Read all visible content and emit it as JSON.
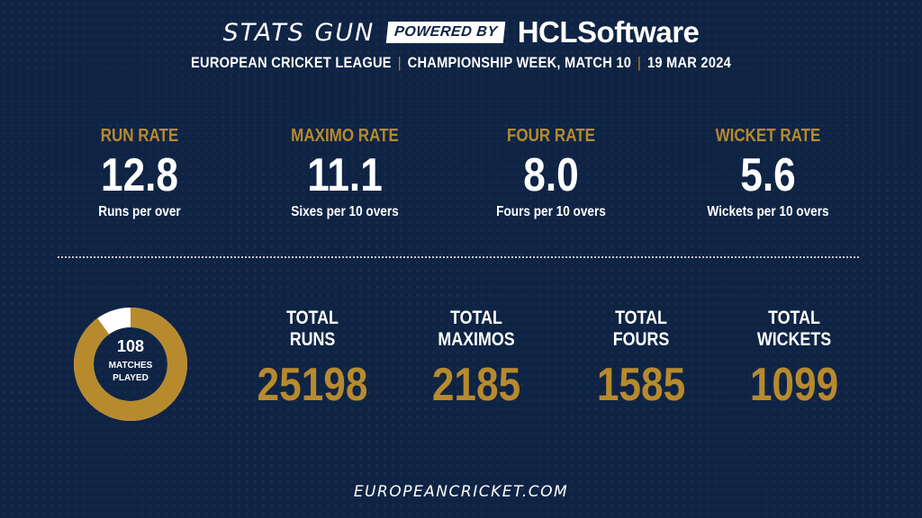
{
  "header": {
    "brand": "STATS GUN",
    "powered_by": "POWERED BY",
    "sponsor": "HCLSoftware",
    "league": "EUROPEAN CRICKET LEAGUE",
    "separator": "|",
    "event": "CHAMPIONSHIP WEEK, MATCH 10",
    "date": "19 MAR 2024"
  },
  "rates": [
    {
      "label": "RUN RATE",
      "value": "12.8",
      "desc": "Runs per over"
    },
    {
      "label": "MAXIMO RATE",
      "value": "11.1",
      "desc": "Sixes per 10 overs"
    },
    {
      "label": "FOUR RATE",
      "value": "8.0",
      "desc": "Fours per 10 overs"
    },
    {
      "label": "WICKET RATE",
      "value": "5.6",
      "desc": "Wickets per 10 overs"
    }
  ],
  "matches": {
    "count": "108",
    "label_line1": "MATCHES",
    "label_line2": "PLAYED",
    "progress_fraction": 0.9
  },
  "totals": [
    {
      "label_line1": "TOTAL",
      "label_line2": "RUNS",
      "value": "25198"
    },
    {
      "label_line1": "TOTAL",
      "label_line2": "MAXIMOS",
      "value": "2185"
    },
    {
      "label_line1": "TOTAL",
      "label_line2": "FOURS",
      "value": "1585"
    },
    {
      "label_line1": "TOTAL",
      "label_line2": "WICKETS",
      "value": "1099"
    }
  ],
  "footer": {
    "website": "EUROPEANCRICKET.COM"
  },
  "colors": {
    "background": "#0f2444",
    "accent_gold": "#b78a2e",
    "text": "#ffffff"
  }
}
